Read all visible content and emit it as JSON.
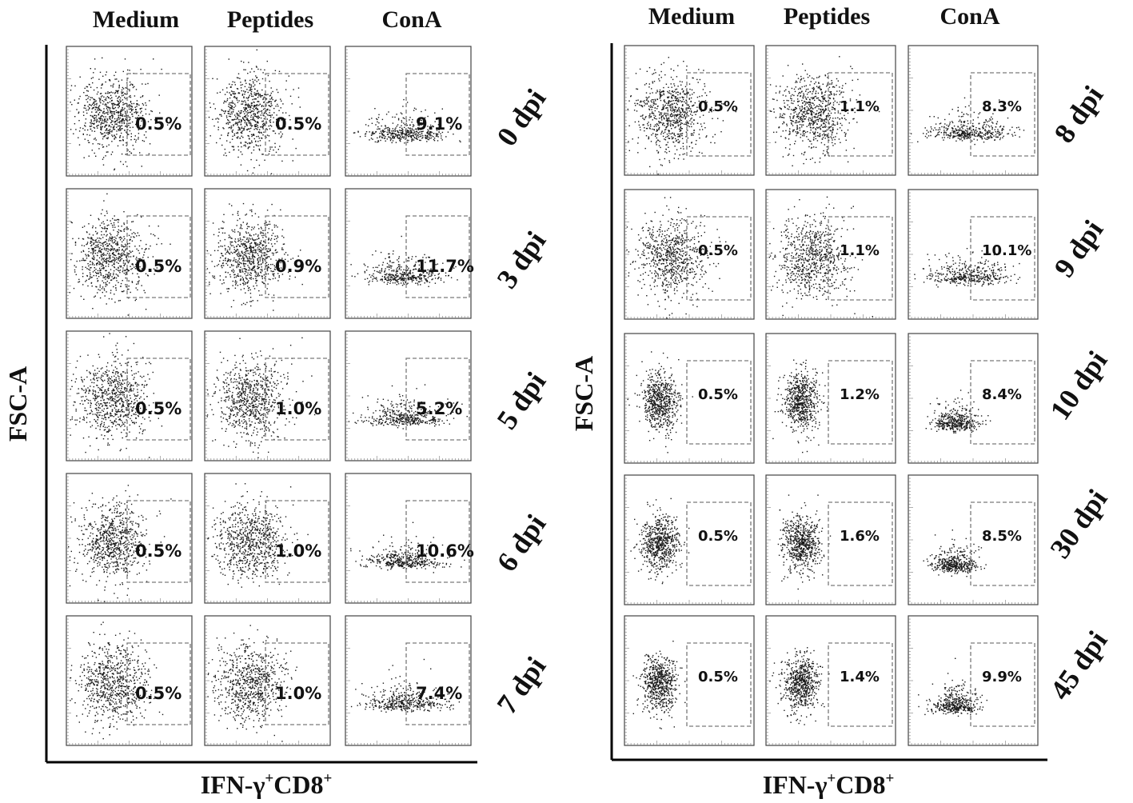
{
  "panels": [
    {
      "column_headers": [
        "Medium",
        "Peptides",
        "ConA"
      ],
      "y_axis_label": "FSC-A",
      "x_axis_label": {
        "base": "IFN-γ",
        "sup1": "+",
        "mid": "CD8",
        "sup2": "+"
      },
      "rows": [
        {
          "label": "0 dpi",
          "values": [
            "0.5%",
            "0.5%",
            "9.1%"
          ]
        },
        {
          "label": "3 dpi",
          "values": [
            "0.5%",
            "0.9%",
            "11.7%"
          ]
        },
        {
          "label": "5 dpi",
          "values": [
            "0.5%",
            "1.0%",
            "5.2%"
          ]
        },
        {
          "label": "6 dpi",
          "values": [
            "0.5%",
            "1.0%",
            "10.6%"
          ]
        },
        {
          "label": "7 dpi",
          "values": [
            "0.5%",
            "1.0%",
            "7.4%"
          ]
        }
      ]
    },
    {
      "column_headers": [
        "Medium",
        "Peptides",
        "ConA"
      ],
      "y_axis_label": "FSC-A",
      "x_axis_label": {
        "base": "IFN-γ",
        "sup1": "+",
        "mid": "CD8",
        "sup2": "+"
      },
      "rows": [
        {
          "label": "8 dpi",
          "values": [
            "0.5%",
            "1.1%",
            "8.3%"
          ]
        },
        {
          "label": "9 dpi",
          "values": [
            "0.5%",
            "1.1%",
            "10.1%"
          ]
        },
        {
          "label": "10 dpi",
          "values": [
            "0.5%",
            "1.2%",
            "8.4%"
          ]
        },
        {
          "label": "30 dpi",
          "values": [
            "0.5%",
            "1.6%",
            "8.5%"
          ]
        },
        {
          "label": "45 dpi",
          "values": [
            "0.5%",
            "1.4%",
            "9.9%"
          ]
        }
      ]
    }
  ],
  "chart_data": {
    "type": "scatter",
    "conditions": [
      "Medium",
      "Peptides",
      "ConA"
    ],
    "timepoints": [
      "0 dpi",
      "3 dpi",
      "5 dpi",
      "6 dpi",
      "7 dpi",
      "8 dpi",
      "9 dpi",
      "10 dpi",
      "30 dpi",
      "45 dpi"
    ],
    "xlabel": "IFN-γ+CD8+",
    "ylabel": "FSC-A",
    "gated_percent": {
      "Medium": [
        0.5,
        0.5,
        0.5,
        0.5,
        0.5,
        0.5,
        0.5,
        0.5,
        0.5,
        0.5
      ],
      "Peptides": [
        0.5,
        0.9,
        1.0,
        1.0,
        1.0,
        1.1,
        1.1,
        1.2,
        1.6,
        1.4
      ],
      "ConA": [
        9.1,
        11.7,
        5.2,
        10.6,
        7.4,
        8.3,
        10.1,
        8.4,
        8.5,
        9.9
      ]
    },
    "grid": false,
    "legend": "none"
  }
}
